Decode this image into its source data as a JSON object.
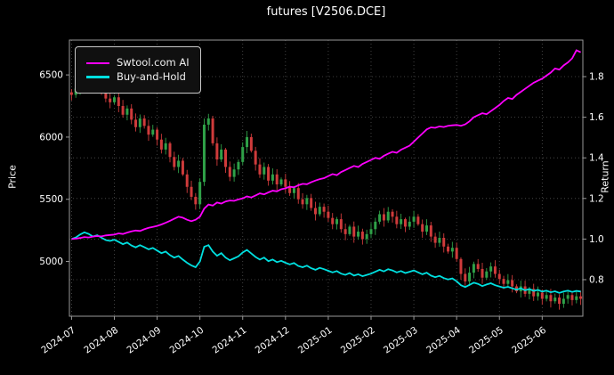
{
  "chart_data": {
    "type": "candlestick+line",
    "title": "futures [V2506.DCE]",
    "ylabel_left": "Price",
    "ylabel_right": "Return",
    "grid": "dotted",
    "legend_position": "upper-left",
    "left_axis": {
      "min": 4560,
      "max": 6780,
      "ticks": [
        5000,
        5500,
        6000,
        6500
      ]
    },
    "right_axis": {
      "min": 0.62,
      "max": 1.98,
      "ticks": [
        0.8,
        1.0,
        1.2,
        1.4,
        1.6,
        1.8
      ]
    },
    "x_ticks": [
      {
        "label": "2024-07",
        "i": 0
      },
      {
        "label": "2024-08",
        "i": 10
      },
      {
        "label": "2024-09",
        "i": 20
      },
      {
        "label": "2024-10",
        "i": 30
      },
      {
        "label": "2024-11",
        "i": 40
      },
      {
        "label": "2024-12",
        "i": 50
      },
      {
        "label": "2025-01",
        "i": 60
      },
      {
        "label": "2025-02",
        "i": 70
      },
      {
        "label": "2025-03",
        "i": 80
      },
      {
        "label": "2025-04",
        "i": 90
      },
      {
        "label": "2025-05",
        "i": 100
      },
      {
        "label": "2025-06",
        "i": 110
      }
    ],
    "candle_up_color": "#2fa148",
    "candle_down_color": "#cf3b3b",
    "open_first": 6360,
    "price_closes": [
      6340,
      6390,
      6480,
      6550,
      6500,
      6420,
      6460,
      6380,
      6310,
      6280,
      6320,
      6250,
      6180,
      6230,
      6140,
      6080,
      6150,
      6090,
      6020,
      6060,
      5980,
      5900,
      5950,
      5840,
      5760,
      5810,
      5700,
      5600,
      5520,
      5460,
      5640,
      6100,
      6150,
      5950,
      5820,
      5900,
      5760,
      5680,
      5740,
      5800,
      5920,
      6000,
      5890,
      5780,
      5700,
      5760,
      5650,
      5700,
      5620,
      5660,
      5600,
      5550,
      5590,
      5500,
      5460,
      5510,
      5430,
      5380,
      5440,
      5400,
      5350,
      5300,
      5340,
      5260,
      5220,
      5280,
      5200,
      5240,
      5180,
      5220,
      5260,
      5320,
      5380,
      5330,
      5400,
      5360,
      5300,
      5340,
      5280,
      5320,
      5360,
      5300,
      5240,
      5290,
      5200,
      5150,
      5190,
      5120,
      5080,
      5110,
      5020,
      4900,
      4840,
      4910,
      4980,
      4940,
      4870,
      4920,
      4960,
      4900,
      4860,
      4820,
      4850,
      4800,
      4760,
      4800,
      4740,
      4780,
      4720,
      4750,
      4700,
      4730,
      4680,
      4710,
      4660,
      4700,
      4730,
      4690,
      4720,
      4700
    ],
    "series": [
      {
        "name": "Swtool.com AI",
        "color": "#ff00ff",
        "axis": "right",
        "values": [
          1.0,
          1.002,
          1.005,
          1.01,
          1.008,
          1.012,
          1.015,
          1.013,
          1.018,
          1.02,
          1.022,
          1.028,
          1.025,
          1.032,
          1.038,
          1.042,
          1.04,
          1.048,
          1.055,
          1.06,
          1.065,
          1.072,
          1.08,
          1.09,
          1.1,
          1.11,
          1.105,
          1.095,
          1.088,
          1.095,
          1.11,
          1.15,
          1.17,
          1.165,
          1.18,
          1.175,
          1.185,
          1.19,
          1.188,
          1.195,
          1.2,
          1.21,
          1.205,
          1.215,
          1.225,
          1.22,
          1.23,
          1.238,
          1.235,
          1.245,
          1.25,
          1.258,
          1.255,
          1.265,
          1.272,
          1.27,
          1.28,
          1.288,
          1.295,
          1.3,
          1.31,
          1.32,
          1.315,
          1.33,
          1.34,
          1.35,
          1.36,
          1.355,
          1.37,
          1.38,
          1.39,
          1.4,
          1.395,
          1.41,
          1.42,
          1.43,
          1.425,
          1.44,
          1.45,
          1.46,
          1.48,
          1.5,
          1.52,
          1.54,
          1.55,
          1.548,
          1.555,
          1.552,
          1.558,
          1.56,
          1.562,
          1.558,
          1.565,
          1.58,
          1.6,
          1.61,
          1.62,
          1.615,
          1.63,
          1.645,
          1.66,
          1.68,
          1.695,
          1.69,
          1.71,
          1.725,
          1.74,
          1.755,
          1.77,
          1.78,
          1.79,
          1.805,
          1.82,
          1.84,
          1.835,
          1.855,
          1.87,
          1.89,
          1.93,
          1.92
        ]
      },
      {
        "name": "Buy-and-Hold",
        "color": "#00e0e0",
        "axis": "right",
        "derivation": "price_closes[i] / price_closes[0]"
      }
    ]
  }
}
